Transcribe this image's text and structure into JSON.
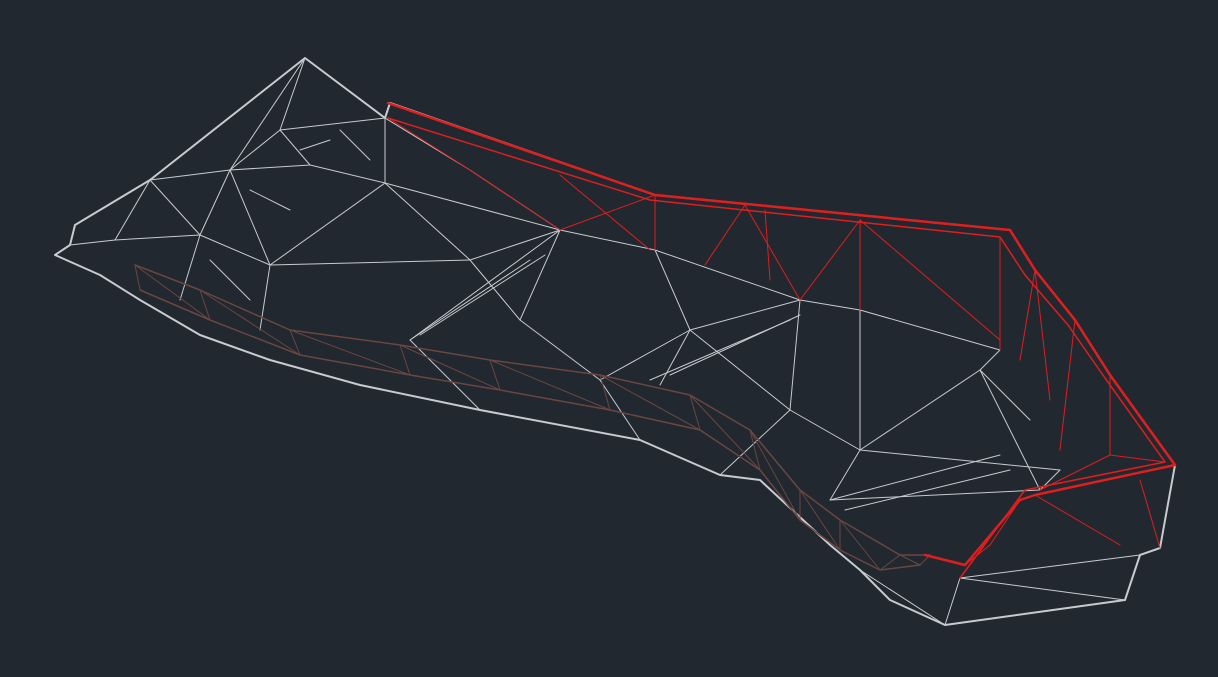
{
  "viewport": {
    "background": "#212830",
    "mesh_color": "#c7cbd0",
    "channel_color": "#6a4640",
    "boundary_color": "#e01e1e"
  }
}
